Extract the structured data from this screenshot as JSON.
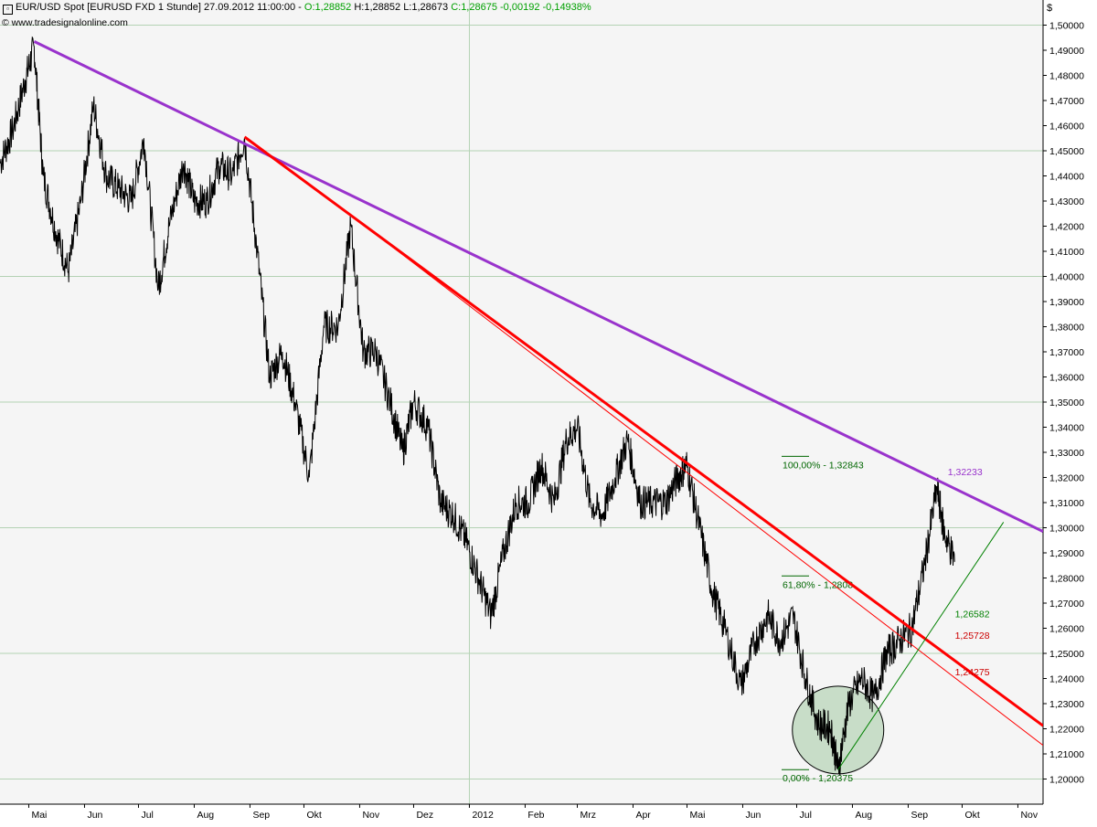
{
  "header": {
    "icon": "expand-icon",
    "instrument": "EUR/USD Spot [EURUSD FXD  1 Stunde] 27.09.2012 11:00:00 -",
    "open": "O:1,28852",
    "high": "H:1,28852",
    "low": "L:1,28673",
    "close_change": "C:1,28675 -0,00192 -0,14938%",
    "currency": "$",
    "source": "© www.tradesignalonline.com",
    "colors": {
      "open": "#00a000",
      "close": "#00a000",
      "text": "#000000"
    }
  },
  "chart_data": {
    "type": "line",
    "title": "EUR/USD Spot [EURUSD FXD  1 Stunde]",
    "xlabel": "",
    "ylabel": "",
    "x_tick_labels": [
      "Mai",
      "Jun",
      "Jul",
      "Aug",
      "Sep",
      "Okt",
      "Nov",
      "Dez",
      "2012",
      "Feb",
      "Mrz",
      "Apr",
      "Mai",
      "Jun",
      "Jul",
      "Aug",
      "Sep",
      "Okt",
      "Nov"
    ],
    "x_range": [
      "2011-04-15",
      "2012-11-15"
    ],
    "ylim": [
      1.19,
      1.51
    ],
    "y_ticks": [
      1.2,
      1.21,
      1.22,
      1.23,
      1.24,
      1.25,
      1.26,
      1.27,
      1.28,
      1.29,
      1.3,
      1.31,
      1.32,
      1.33,
      1.34,
      1.35,
      1.36,
      1.37,
      1.38,
      1.39,
      1.4,
      1.41,
      1.42,
      1.43,
      1.44,
      1.45,
      1.46,
      1.47,
      1.48,
      1.49,
      1.5
    ],
    "y_tick_labels": [
      "1,20000",
      "1,21000",
      "1,22000",
      "1,23000",
      "1,24000",
      "1,25000",
      "1,26000",
      "1,27000",
      "1,28000",
      "1,29000",
      "1,30000",
      "1,31000",
      "1,32000",
      "1,33000",
      "1,34000",
      "1,35000",
      "1,36000",
      "1,37000",
      "1,38000",
      "1,39000",
      "1,40000",
      "1,41000",
      "1,42000",
      "1,43000",
      "1,44000",
      "1,45000",
      "1,46000",
      "1,47000",
      "1,48000",
      "1,49000",
      "1,50000"
    ],
    "major_grid_y": [
      1.2,
      1.25,
      1.3,
      1.35,
      1.4,
      1.45,
      1.5
    ],
    "grid": true,
    "series": [
      {
        "color": "#000000",
        "points": [
          [
            "2011-04-15",
            1.445
          ],
          [
            "2011-04-22",
            1.458
          ],
          [
            "2011-04-29",
            1.478
          ],
          [
            "2011-05-04",
            1.4915
          ],
          [
            "2011-05-09",
            1.44
          ],
          [
            "2011-05-16",
            1.418
          ],
          [
            "2011-05-23",
            1.402
          ],
          [
            "2011-05-30",
            1.43
          ],
          [
            "2011-06-06",
            1.468
          ],
          [
            "2011-06-13",
            1.44
          ],
          [
            "2011-06-20",
            1.435
          ],
          [
            "2011-06-27",
            1.43
          ],
          [
            "2011-07-04",
            1.455
          ],
          [
            "2011-07-12",
            1.395
          ],
          [
            "2011-07-18",
            1.42
          ],
          [
            "2011-07-26",
            1.445
          ],
          [
            "2011-08-01",
            1.43
          ],
          [
            "2011-08-08",
            1.43
          ],
          [
            "2011-08-15",
            1.444
          ],
          [
            "2011-08-22",
            1.44
          ],
          [
            "2011-08-29",
            1.455
          ],
          [
            "2011-09-05",
            1.41
          ],
          [
            "2011-09-12",
            1.36
          ],
          [
            "2011-09-19",
            1.37
          ],
          [
            "2011-09-26",
            1.35
          ],
          [
            "2011-10-04",
            1.32
          ],
          [
            "2011-10-12",
            1.38
          ],
          [
            "2011-10-20",
            1.38
          ],
          [
            "2011-10-27",
            1.42
          ],
          [
            "2011-11-03",
            1.37
          ],
          [
            "2011-11-10",
            1.37
          ],
          [
            "2011-11-18",
            1.35
          ],
          [
            "2011-11-25",
            1.33
          ],
          [
            "2011-12-01",
            1.35
          ],
          [
            "2011-12-09",
            1.34
          ],
          [
            "2011-12-16",
            1.31
          ],
          [
            "2011-12-23",
            1.305
          ],
          [
            "2011-12-30",
            1.295
          ],
          [
            "2012-01-06",
            1.28
          ],
          [
            "2012-01-13",
            1.265
          ],
          [
            "2012-01-20",
            1.29
          ],
          [
            "2012-01-27",
            1.31
          ],
          [
            "2012-02-03",
            1.31
          ],
          [
            "2012-02-10",
            1.325
          ],
          [
            "2012-02-17",
            1.31
          ],
          [
            "2012-02-24",
            1.335
          ],
          [
            "2012-03-01",
            1.34
          ],
          [
            "2012-03-08",
            1.31
          ],
          [
            "2012-03-15",
            1.305
          ],
          [
            "2012-03-22",
            1.32
          ],
          [
            "2012-03-29",
            1.335
          ],
          [
            "2012-04-05",
            1.31
          ],
          [
            "2012-04-12",
            1.31
          ],
          [
            "2012-04-19",
            1.31
          ],
          [
            "2012-04-26",
            1.32
          ],
          [
            "2012-05-01",
            1.325
          ],
          [
            "2012-05-08",
            1.3
          ],
          [
            "2012-05-15",
            1.275
          ],
          [
            "2012-05-22",
            1.26
          ],
          [
            "2012-05-31",
            1.237
          ],
          [
            "2012-06-08",
            1.255
          ],
          [
            "2012-06-15",
            1.265
          ],
          [
            "2012-06-22",
            1.255
          ],
          [
            "2012-06-29",
            1.265
          ],
          [
            "2012-07-06",
            1.24
          ],
          [
            "2012-07-13",
            1.222
          ],
          [
            "2012-07-20",
            1.22
          ],
          [
            "2012-07-24",
            1.2037
          ],
          [
            "2012-07-30",
            1.23
          ],
          [
            "2012-08-06",
            1.24
          ],
          [
            "2012-08-13",
            1.232
          ],
          [
            "2012-08-20",
            1.25
          ],
          [
            "2012-08-27",
            1.255
          ],
          [
            "2012-09-03",
            1.26
          ],
          [
            "2012-09-10",
            1.285
          ],
          [
            "2012-09-17",
            1.316
          ],
          [
            "2012-09-21",
            1.298
          ],
          [
            "2012-09-27",
            1.2868
          ]
        ]
      }
    ],
    "trendlines": [
      {
        "color": "#9933cc",
        "from": [
          "2011-05-04",
          1.4935
        ],
        "to": [
          "2012-11-15",
          1.2985
        ]
      },
      {
        "color": "#ff0000",
        "from": [
          "2011-08-29",
          1.4555
        ],
        "to": [
          "2012-11-15",
          1.2212
        ]
      },
      {
        "color": "#ff0000",
        "from": [
          "2011-10-27",
          1.4245
        ],
        "to": [
          "2012-11-15",
          1.2134
        ]
      },
      {
        "color": "#008000",
        "from": [
          "2012-07-24",
          1.2037
        ],
        "to": [
          "2012-10-24",
          1.3022
        ]
      }
    ],
    "fibonacci": {
      "color": "#006600",
      "levels": [
        {
          "label": "100,00% - 1,32843",
          "value": 1.32843
        },
        {
          "label": "61,80% - 1,2808",
          "value": 1.2808
        },
        {
          "label": "0,00% - 1,20375",
          "value": 1.20375
        }
      ]
    },
    "annotations": [
      {
        "text": "1,32233",
        "color": "#9933cc",
        "x": "2012-09-23",
        "y": 1.3223
      },
      {
        "text": "1,26582",
        "color": "#008000",
        "x": "2012-09-27",
        "y": 1.2658
      },
      {
        "text": "1,25728",
        "color": "#cc0000",
        "x": "2012-09-27",
        "y": 1.2573
      },
      {
        "text": "1,24275",
        "color": "#cc0000",
        "x": "2012-09-27",
        "y": 1.2428
      }
    ],
    "highlight_circle": {
      "x": "2012-07-24",
      "y": 1.2195,
      "fill": "#b8d4b8"
    }
  }
}
